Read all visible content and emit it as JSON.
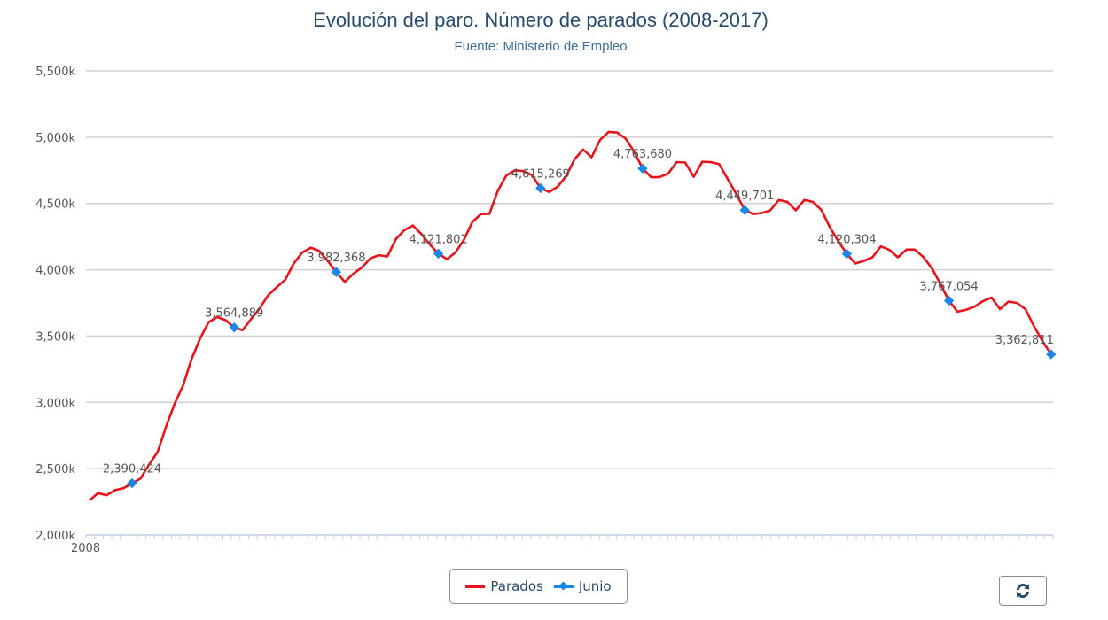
{
  "header": {
    "title": "Evolución del paro. Número de parados (2008-2017)",
    "subtitle": "Fuente: Ministerio de Empleo"
  },
  "legend": {
    "items": [
      {
        "label": "Parados",
        "color": "#e8141c",
        "icon": "line-icon"
      },
      {
        "label": "Junio",
        "color": "#1a86e8",
        "icon": "line-diamond-icon"
      }
    ]
  },
  "controls": {
    "reset_icon": "refresh-icon"
  },
  "colors": {
    "parados": "#e8141c",
    "junio": "#1a86e8",
    "grid": "#d0d0d0",
    "axis": "#c0d0e0",
    "title": "#274b6d",
    "subtitle": "#3e6e9a"
  },
  "chart_data": {
    "type": "line",
    "title": "Evolución del paro. Número de parados (2008-2017)",
    "subtitle": "Fuente: Ministerio de Empleo",
    "xlabel": "",
    "ylabel": "",
    "x_tick_labels": [
      "2008"
    ],
    "y_tick_labels": [
      "2,000k",
      "2,500k",
      "3,000k",
      "3,500k",
      "4,000k",
      "4,500k",
      "5,000k",
      "5,500k"
    ],
    "ylim": [
      2000,
      5500
    ],
    "y_unit": "thousands",
    "grid": true,
    "legend_position": "bottom-center",
    "x_start": "2008-01",
    "x_end": "2017-06",
    "x_step": "month",
    "series": [
      {
        "name": "Parados",
        "color": "#e8141c",
        "values": [
          2261,
          2315,
          2300,
          2338,
          2353,
          2390,
          2426,
          2531,
          2625,
          2818,
          2989,
          3128,
          3328,
          3482,
          3605,
          3644,
          3620,
          3565,
          3545,
          3630,
          3709,
          3808,
          3869,
          3924,
          4048,
          4130,
          4167,
          4142,
          4066,
          3982,
          3908,
          3970,
          4017,
          4086,
          4110,
          4100,
          4231,
          4299,
          4334,
          4269,
          4190,
          4122,
          4080,
          4130,
          4226,
          4361,
          4420,
          4422,
          4599,
          4712,
          4750,
          4744,
          4714,
          4615,
          4587,
          4626,
          4705,
          4833,
          4907,
          4848,
          4980,
          5040,
          5035,
          4989,
          4890,
          4764,
          4698,
          4699,
          4725,
          4812,
          4809,
          4701,
          4814,
          4812,
          4796,
          4684,
          4572,
          4450,
          4420,
          4428,
          4447,
          4526,
          4512,
          4448,
          4526,
          4512,
          4452,
          4322,
          4215,
          4120,
          4047,
          4067,
          4094,
          4176,
          4150,
          4094,
          4152,
          4152,
          4095,
          4011,
          3892,
          3767,
          3684,
          3698,
          3721,
          3764,
          3790,
          3703,
          3760,
          3750,
          3702,
          3573,
          3461,
          3363
        ]
      },
      {
        "name": "Junio",
        "color": "#1a86e8",
        "marker": "diamond",
        "points": [
          {
            "x": "2008-06",
            "y": 2390424,
            "label": "2,390,424"
          },
          {
            "x": "2009-06",
            "y": 3564889,
            "label": "3,564,889"
          },
          {
            "x": "2010-06",
            "y": 3982368,
            "label": "3,982,368"
          },
          {
            "x": "2011-06",
            "y": 4121801,
            "label": "4,121,801"
          },
          {
            "x": "2012-06",
            "y": 4615269,
            "label": "4,615,269"
          },
          {
            "x": "2013-06",
            "y": 4763680,
            "label": "4,763,680"
          },
          {
            "x": "2014-06",
            "y": 4449701,
            "label": "4,449,701"
          },
          {
            "x": "2015-06",
            "y": 4120304,
            "label": "4,120,304"
          },
          {
            "x": "2016-06",
            "y": 3767054,
            "label": "3,767,054"
          },
          {
            "x": "2017-06",
            "y": 3362811,
            "label": "3,362,811"
          }
        ]
      }
    ]
  }
}
